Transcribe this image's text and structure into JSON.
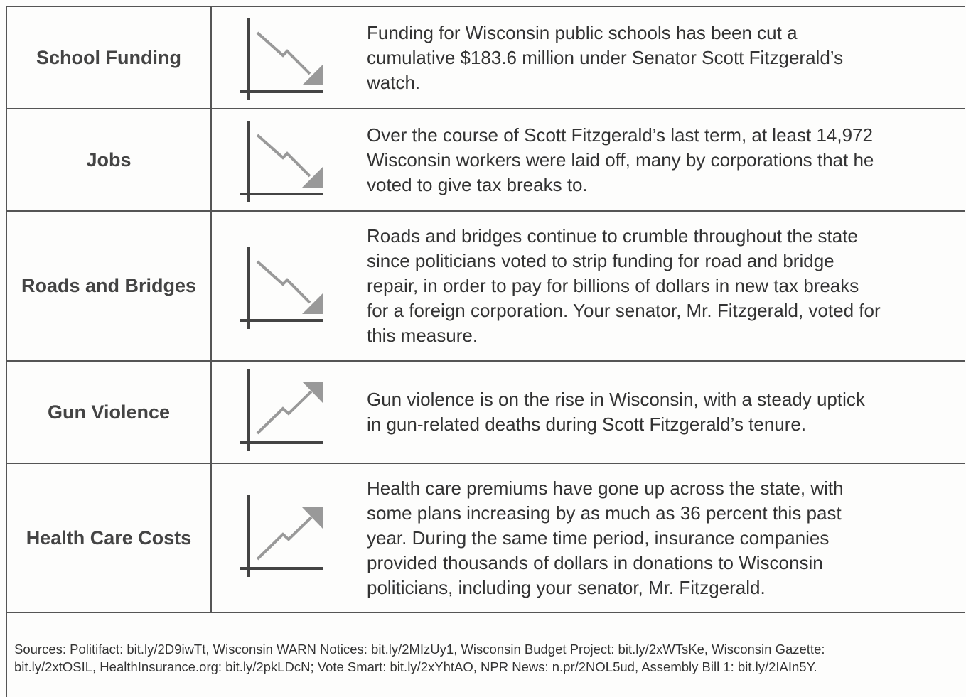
{
  "rows": [
    {
      "label": "School Funding",
      "description": [
        "Funding for Wisconsin public schools has been cut a",
        "cumulative $183.6 million under Senator Scott Fitzgerald’s",
        "watch."
      ]
    },
    {
      "label": "Jobs",
      "description": [
        "Over the course of Scott Fitzgerald’s last term, at least 14,972",
        "Wisconsin workers were laid off, many by corporations that he",
        "voted to give tax breaks to."
      ]
    },
    {
      "label": "Roads and Bridges",
      "description": [
        "Roads and bridges continue to crumble throughout the state",
        "since politicians voted to strip funding for road and bridge",
        "repair, in order to pay for billions of dollars in new tax breaks",
        "for a foreign corporation. Your senator, Mr. Fitzgerald, voted for",
        "this measure."
      ]
    },
    {
      "label": "Gun Violence",
      "description": [
        "Gun violence is on the rise in Wisconsin, with a steady uptick",
        "in gun-related deaths during Scott Fitzgerald’s tenure."
      ]
    },
    {
      "label": "Health Care Costs",
      "description": [
        "Health care premiums have gone up across the state, with",
        "some plans increasing by as much as 36 percent this past",
        "year. During the same time period, insurance companies",
        "provided thousands of dollars in donations to Wisconsin",
        "politicians, including your senator, Mr. Fitzgerald."
      ]
    }
  ],
  "sources": [
    "Sources: Politifact: bit.ly/2D9iwTt, Wisconsin WARN Notices: bit.ly/2MIzUy1, Wisconsin Budget Project: bit.ly/2xWTsKe, Wisconsin Gazette:",
    "bit.ly/2xtOSIL, HealthInsurance.org: bit.ly/2pkLDcN; Vote Smart: bit.ly/2xYhtAO, NPR News: n.pr/2NOL5ud, Assembly Bill 1: bit.ly/2IAIn5Y."
  ]
}
